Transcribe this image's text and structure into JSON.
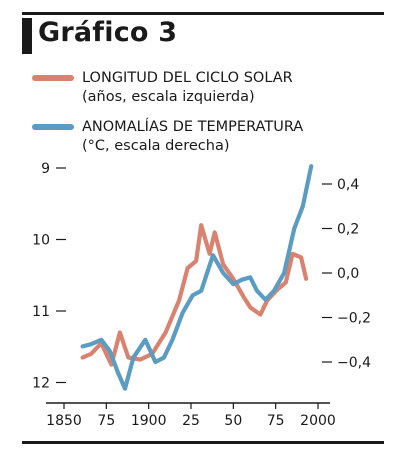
{
  "title": "Gráfico 3",
  "chart_data": {
    "type": "line",
    "title": "Gráfico 3",
    "xlim": [
      1845,
      2003
    ],
    "x_ticks": [
      1850,
      1875,
      1900,
      1925,
      1950,
      1975,
      2000
    ],
    "x_tick_labels": [
      "1850",
      "75",
      "1900",
      "25",
      "50",
      "75",
      "2000"
    ],
    "left_axis": {
      "ylim": [
        12,
        8.8
      ],
      "inverted": true,
      "ticks": [
        9,
        10,
        11,
        12
      ],
      "tick_labels": [
        "9",
        "10",
        "11",
        "12"
      ]
    },
    "right_axis": {
      "ylim": [
        -0.5,
        0.5
      ],
      "ticks": [
        0.4,
        0.2,
        0.0,
        -0.2,
        -0.4
      ],
      "tick_labels": [
        "0,4",
        "0,2",
        "0,0",
        "−0,2",
        "−0,4"
      ]
    },
    "series": [
      {
        "name": "LONGITUD DEL CICLO SOLAR",
        "sub": "(años, escala izquierda)",
        "axis": "left",
        "color": "#d9826f",
        "points": [
          [
            1861,
            11.65
          ],
          [
            1866,
            11.6
          ],
          [
            1872,
            11.45
          ],
          [
            1878,
            11.75
          ],
          [
            1883,
            11.3
          ],
          [
            1888,
            11.65
          ],
          [
            1895,
            11.68
          ],
          [
            1902,
            11.6
          ],
          [
            1910,
            11.3
          ],
          [
            1918,
            10.85
          ],
          [
            1923,
            10.4
          ],
          [
            1928,
            10.3
          ],
          [
            1931,
            9.8
          ],
          [
            1936,
            10.2
          ],
          [
            1939,
            9.9
          ],
          [
            1944,
            10.35
          ],
          [
            1950,
            10.55
          ],
          [
            1956,
            10.8
          ],
          [
            1960,
            10.95
          ],
          [
            1966,
            11.05
          ],
          [
            1970,
            10.85
          ],
          [
            1976,
            10.7
          ],
          [
            1981,
            10.6
          ],
          [
            1985,
            10.2
          ],
          [
            1990,
            10.25
          ],
          [
            1993,
            10.55
          ]
        ]
      },
      {
        "name": "ANOMALÍAS DE TEMPERATURA",
        "sub": "(°C, escala derecha)",
        "axis": "right",
        "color": "#5b9cc2",
        "points": [
          [
            1861,
            -0.33
          ],
          [
            1866,
            -0.32
          ],
          [
            1872,
            -0.3
          ],
          [
            1877,
            -0.35
          ],
          [
            1882,
            -0.45
          ],
          [
            1886,
            -0.52
          ],
          [
            1891,
            -0.38
          ],
          [
            1898,
            -0.3
          ],
          [
            1904,
            -0.4
          ],
          [
            1909,
            -0.38
          ],
          [
            1914,
            -0.3
          ],
          [
            1920,
            -0.18
          ],
          [
            1926,
            -0.1
          ],
          [
            1931,
            -0.08
          ],
          [
            1938,
            0.08
          ],
          [
            1944,
            0.0
          ],
          [
            1950,
            -0.05
          ],
          [
            1955,
            -0.03
          ],
          [
            1960,
            -0.02
          ],
          [
            1964,
            -0.08
          ],
          [
            1969,
            -0.12
          ],
          [
            1974,
            -0.08
          ],
          [
            1980,
            0.0
          ],
          [
            1986,
            0.2
          ],
          [
            1991,
            0.3
          ],
          [
            1996,
            0.48
          ]
        ]
      }
    ],
    "legend_position": "top-left",
    "grid": false
  }
}
